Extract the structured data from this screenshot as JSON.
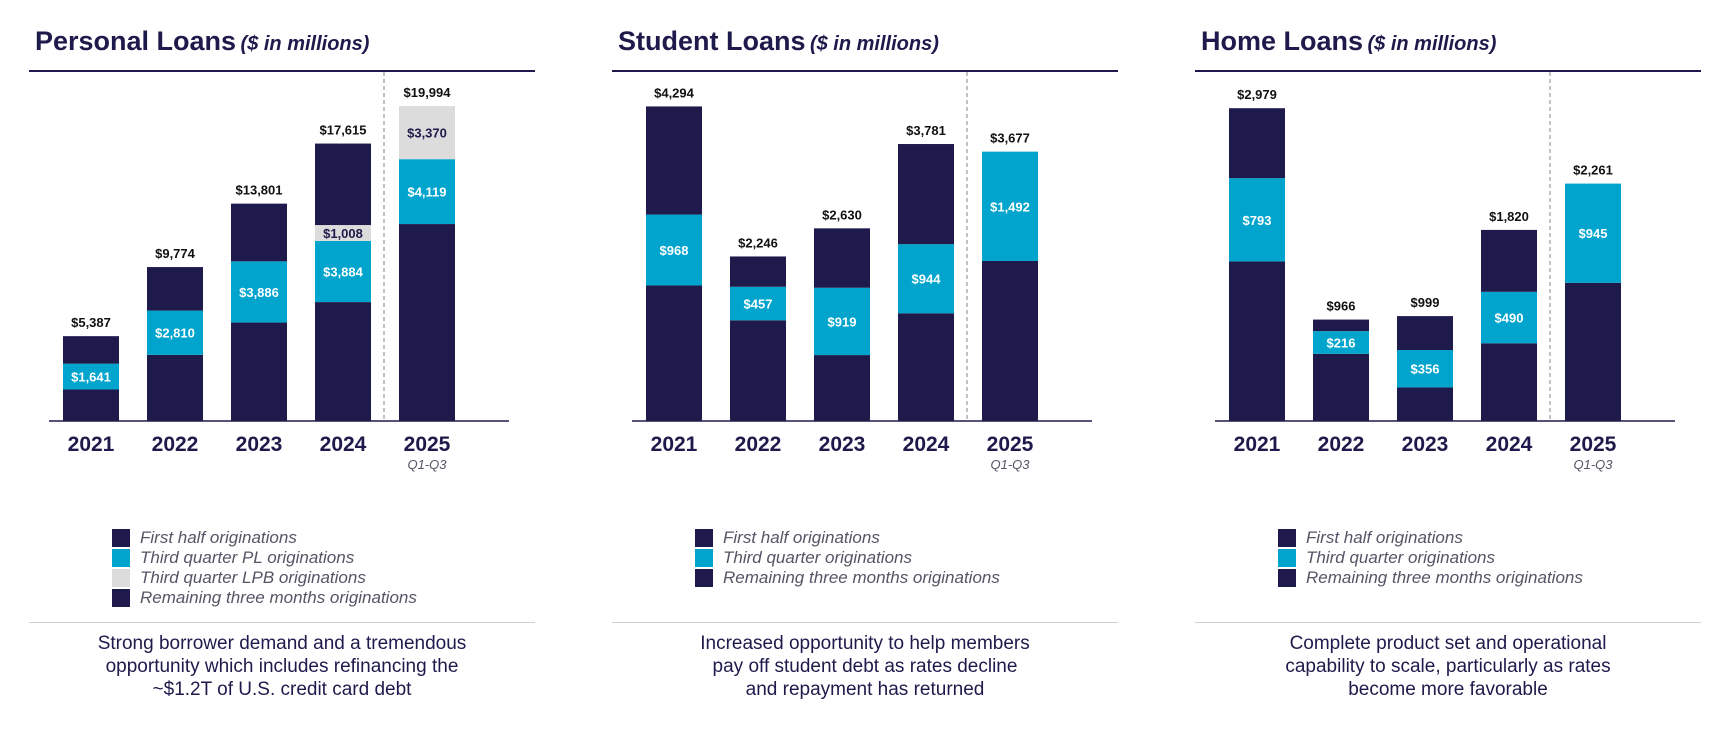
{
  "colors": {
    "navy": "#1e1a4b",
    "teal": "#00a4cc",
    "gray": "#dcdcdc",
    "rule": "#1e1a4b"
  },
  "panels": [
    {
      "title": "Personal Loans",
      "subtitle": "($ in millions)",
      "legend": [
        {
          "label": "First half originations",
          "color": "#1e1a4b"
        },
        {
          "label": "Third quarter PL originations",
          "color": "#00a4cc"
        },
        {
          "label": "Third quarter LPB originations",
          "color": "#dcdcdc"
        },
        {
          "label": "Remaining three months originations",
          "color": "#1e1a4b"
        }
      ],
      "caption": [
        "Strong borrower demand and a tremendous",
        "opportunity which includes refinancing the",
        "~$1.2T of U.S. credit card debt"
      ]
    },
    {
      "title": "Student Loans",
      "subtitle": "($ in millions)",
      "legend": [
        {
          "label": "First half originations",
          "color": "#1e1a4b"
        },
        {
          "label": "Third quarter originations",
          "color": "#00a4cc"
        },
        {
          "label": "Remaining three months originations",
          "color": "#1e1a4b"
        }
      ],
      "caption": [
        "Increased opportunity to help members",
        "pay off student debt as rates decline",
        "and repayment has returned"
      ]
    },
    {
      "title": "Home Loans",
      "subtitle": "($ in millions)",
      "legend": [
        {
          "label": "First half originations",
          "color": "#1e1a4b"
        },
        {
          "label": "Third quarter originations",
          "color": "#00a4cc"
        },
        {
          "label": "Remaining three months originations",
          "color": "#1e1a4b"
        }
      ],
      "caption": [
        "Complete product set and operational",
        "capability to scale, particularly as rates",
        "become more favorable"
      ]
    }
  ],
  "chart_data": [
    {
      "type": "bar",
      "stacked": true,
      "title": "Personal Loans ($ in millions)",
      "categories": [
        "2021",
        "2022",
        "2023",
        "2024",
        "2025"
      ],
      "category_notes": [
        "",
        "",
        "",
        "",
        "Q1-Q3"
      ],
      "totals": [
        5387,
        9774,
        13801,
        17615,
        19994
      ],
      "total_labels": [
        "$5,387",
        "$9,774",
        "$13,801",
        "$17,615",
        "$19,994"
      ],
      "series": [
        {
          "name": "First half originations",
          "color": "#1e1a4b",
          "values": [
            2000,
            4200,
            6250,
            7550,
            12505
          ]
        },
        {
          "name": "Third quarter PL originations",
          "color": "#00a4cc",
          "values": [
            1641,
            2810,
            3886,
            3884,
            4119
          ],
          "labels": [
            "$1,641",
            "$2,810",
            "$3,886",
            "$3,884",
            "$4,119"
          ]
        },
        {
          "name": "Third quarter LPB originations",
          "color": "#dcdcdc",
          "values": [
            0,
            0,
            0,
            1008,
            3370
          ],
          "labels": [
            "",
            "",
            "",
            "$1,008",
            "$3,370"
          ]
        },
        {
          "name": "Remaining three months originations",
          "color": "#1e1a4b",
          "values": [
            1746,
            2764,
            3665,
            5173,
            0
          ]
        }
      ],
      "xlabel": "",
      "ylabel": "",
      "ylim": [
        0,
        20000
      ]
    },
    {
      "type": "bar",
      "stacked": true,
      "title": "Student Loans ($ in millions)",
      "categories": [
        "2021",
        "2022",
        "2023",
        "2024",
        "2025"
      ],
      "category_notes": [
        "",
        "",
        "",
        "",
        "Q1-Q3"
      ],
      "totals": [
        4294,
        2246,
        2630,
        3781,
        3677
      ],
      "total_labels": [
        "$4,294",
        "$2,246",
        "$2,630",
        "$3,781",
        "$3,677"
      ],
      "series": [
        {
          "name": "First half originations",
          "color": "#1e1a4b",
          "values": [
            1850,
            1375,
            900,
            1470,
            2185
          ]
        },
        {
          "name": "Third quarter originations",
          "color": "#00a4cc",
          "values": [
            968,
            457,
            919,
            944,
            1492
          ],
          "labels": [
            "$968",
            "$457",
            "$919",
            "$944",
            "$1,492"
          ]
        },
        {
          "name": "Remaining three months originations",
          "color": "#1e1a4b",
          "values": [
            1476,
            414,
            811,
            1367,
            0
          ]
        }
      ],
      "xlabel": "",
      "ylabel": "",
      "ylim": [
        0,
        4300
      ]
    },
    {
      "type": "bar",
      "stacked": true,
      "title": "Home Loans ($ in millions)",
      "categories": [
        "2021",
        "2022",
        "2023",
        "2024",
        "2025"
      ],
      "category_notes": [
        "",
        "",
        "",
        "",
        "Q1-Q3"
      ],
      "totals": [
        2979,
        966,
        999,
        1820,
        2261
      ],
      "total_labels": [
        "$2,979",
        "$966",
        "$999",
        "$1,820",
        "$2,261"
      ],
      "series": [
        {
          "name": "First half originations",
          "color": "#1e1a4b",
          "values": [
            1520,
            640,
            320,
            740,
            1316
          ]
        },
        {
          "name": "Third quarter originations",
          "color": "#00a4cc",
          "values": [
            793,
            216,
            356,
            490,
            945
          ],
          "labels": [
            "$793",
            "$216",
            "$356",
            "$490",
            "$945"
          ]
        },
        {
          "name": "Remaining three months originations",
          "color": "#1e1a4b",
          "values": [
            666,
            110,
            323,
            590,
            0
          ]
        }
      ],
      "xlabel": "",
      "ylabel": "",
      "ylim": [
        0,
        3000
      ]
    }
  ]
}
